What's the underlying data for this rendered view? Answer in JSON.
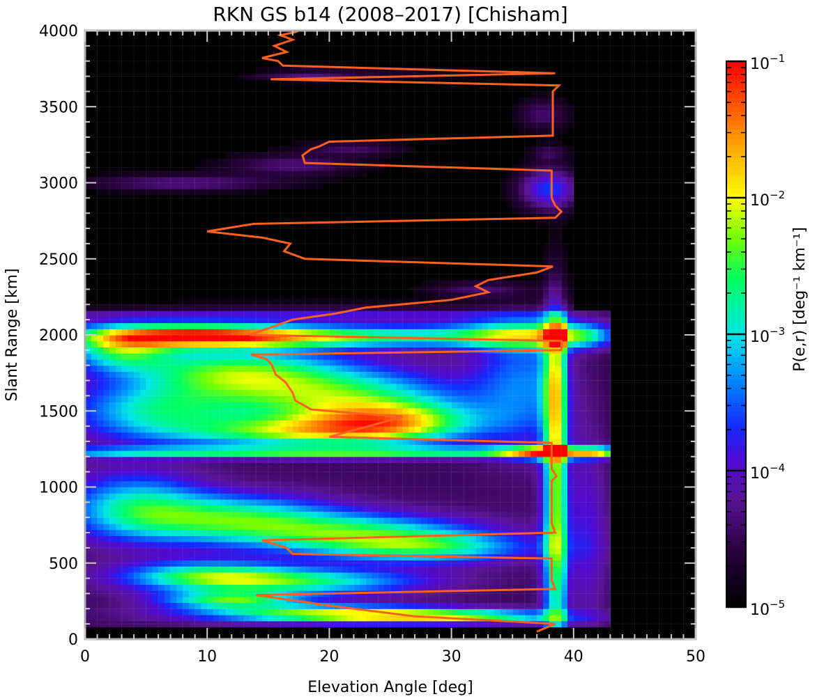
{
  "chart_data": {
    "type": "heatmap",
    "title": "RKN GS b14 (2008–2017) [Chisham]",
    "xlabel": "Elevation Angle [deg]",
    "ylabel": "Slant Range [km]",
    "colorbar_label": "P(e,r) [deg⁻¹ km⁻¹]",
    "xlim": [
      0,
      50
    ],
    "ylim": [
      0,
      4000
    ],
    "x_ticks": [
      "0",
      "10",
      "20",
      "30",
      "40",
      "50"
    ],
    "y_ticks": [
      "0",
      "500",
      "1000",
      "1500",
      "2000",
      "2500",
      "3000",
      "3500",
      "4000"
    ],
    "colorbar": {
      "scale": "log",
      "range": [
        1e-05,
        0.1
      ],
      "ticks": [
        {
          "value": 1e-05,
          "base": "10",
          "exp": "−5"
        },
        {
          "value": 0.0001,
          "base": "10",
          "exp": "−4"
        },
        {
          "value": 0.001,
          "base": "10",
          "exp": "−3"
        },
        {
          "value": 0.01,
          "base": "10",
          "exp": "−2"
        },
        {
          "value": 0.1,
          "base": "10",
          "exp": "−1"
        }
      ]
    },
    "grid": true,
    "background_color": "#000000",
    "line_color": "#ff6020",
    "peak_elevation_line": {
      "name": "",
      "points": [
        [
          37,
          50
        ],
        [
          38.5,
          100
        ],
        [
          27,
          150
        ],
        [
          20,
          220
        ],
        [
          14,
          290
        ],
        [
          38.5,
          330
        ],
        [
          38.2,
          390
        ],
        [
          38.2,
          530
        ],
        [
          17,
          560
        ],
        [
          16.5,
          600
        ],
        [
          14.5,
          650
        ],
        [
          38.5,
          700
        ],
        [
          38.2,
          760
        ],
        [
          38.2,
          1040
        ],
        [
          38.6,
          1070
        ],
        [
          38.2,
          1120
        ],
        [
          38.2,
          1290
        ],
        [
          20,
          1330
        ],
        [
          26,
          1460
        ],
        [
          18.5,
          1510
        ],
        [
          17.2,
          1570
        ],
        [
          17,
          1620
        ],
        [
          16.4,
          1690
        ],
        [
          15.6,
          1740
        ],
        [
          15.3,
          1800
        ],
        [
          14.9,
          1840
        ],
        [
          13.6,
          1870
        ],
        [
          39,
          1900
        ],
        [
          39,
          1960
        ],
        [
          13.5,
          2000
        ],
        [
          17,
          2100
        ],
        [
          20.5,
          2140
        ],
        [
          23,
          2180
        ],
        [
          30,
          2230
        ],
        [
          33,
          2280
        ],
        [
          32,
          2320
        ],
        [
          33,
          2360
        ],
        [
          37,
          2410
        ],
        [
          38.3,
          2450
        ],
        [
          18,
          2500
        ],
        [
          16.3,
          2550
        ],
        [
          16.8,
          2600
        ],
        [
          14.5,
          2640
        ],
        [
          10,
          2680
        ],
        [
          13.8,
          2730
        ],
        [
          38.5,
          2770
        ],
        [
          39,
          2810
        ],
        [
          38.5,
          2850
        ],
        [
          38.2,
          2900
        ],
        [
          38.2,
          3080
        ],
        [
          18,
          3130
        ],
        [
          17.8,
          3180
        ],
        [
          18.5,
          3220
        ],
        [
          19.2,
          3240
        ],
        [
          20,
          3270
        ],
        [
          38.3,
          3310
        ],
        [
          38.3,
          3600
        ],
        [
          38.8,
          3640
        ],
        [
          15.2,
          3680
        ],
        [
          38.5,
          3720
        ],
        [
          16.2,
          3770
        ],
        [
          15.8,
          3800
        ],
        [
          14.5,
          3820
        ],
        [
          16.5,
          3860
        ],
        [
          15.5,
          3900
        ],
        [
          17,
          3940
        ],
        [
          16,
          3970
        ],
        [
          17.2,
          3990
        ],
        [
          17.5,
          4000
        ]
      ]
    },
    "density_blobs": [
      {
        "e": 8,
        "r": 2000,
        "se": 6,
        "sr": 55,
        "w": 3.5
      },
      {
        "e": 18,
        "r": 1990,
        "se": 10,
        "sr": 50,
        "w": 3.3
      },
      {
        "e": 36,
        "r": 2000,
        "se": 5,
        "sr": 60,
        "w": 2.6
      },
      {
        "e": 40.5,
        "r": 2000,
        "se": 1.8,
        "sr": 60,
        "w": 2.6
      },
      {
        "e": 3,
        "r": 1900,
        "se": 3,
        "sr": 90,
        "w": 2.6
      },
      {
        "e": 12,
        "r": 1770,
        "se": 6,
        "sr": 110,
        "w": 2.8
      },
      {
        "e": 20,
        "r": 1600,
        "se": 7,
        "sr": 130,
        "w": 3.0
      },
      {
        "e": 25,
        "r": 1440,
        "se": 5,
        "sr": 90,
        "w": 3.2
      },
      {
        "e": 18,
        "r": 1360,
        "se": 7,
        "sr": 70,
        "w": 3.0
      },
      {
        "e": 6,
        "r": 1500,
        "se": 5,
        "sr": 130,
        "w": 2.4
      },
      {
        "e": 21,
        "r": 1230,
        "se": 20,
        "sr": 25,
        "w": 3.0
      },
      {
        "e": 38,
        "r": 1230,
        "se": 2.5,
        "sr": 30,
        "w": 3.4
      },
      {
        "e": 42,
        "r": 1230,
        "se": 1.5,
        "sr": 25,
        "w": 2.8
      },
      {
        "e": 4,
        "r": 880,
        "se": 4,
        "sr": 160,
        "w": 2.2
      },
      {
        "e": 12,
        "r": 800,
        "se": 6,
        "sr": 110,
        "w": 2.7
      },
      {
        "e": 22,
        "r": 700,
        "se": 7,
        "sr": 90,
        "w": 2.6
      },
      {
        "e": 28,
        "r": 600,
        "se": 6,
        "sr": 70,
        "w": 2.4
      },
      {
        "e": 10,
        "r": 420,
        "se": 5,
        "sr": 70,
        "w": 2.6
      },
      {
        "e": 18,
        "r": 380,
        "se": 7,
        "sr": 60,
        "w": 2.6
      },
      {
        "e": 12,
        "r": 260,
        "se": 4,
        "sr": 40,
        "w": 2.9
      },
      {
        "e": 20,
        "r": 170,
        "se": 8,
        "sr": 40,
        "w": 3.3
      },
      {
        "e": 30,
        "r": 150,
        "se": 7,
        "sr": 28,
        "w": 3.0
      },
      {
        "e": 38.5,
        "r": 600,
        "se": 0.7,
        "sr": 550,
        "w": 2.8
      },
      {
        "e": 38.5,
        "r": 1650,
        "se": 0.7,
        "sr": 450,
        "w": 2.8
      },
      {
        "e": 36,
        "r": 1700,
        "se": 3,
        "sr": 300,
        "w": 1.6
      },
      {
        "e": 41,
        "r": 700,
        "se": 1.5,
        "sr": 500,
        "w": 1.5
      },
      {
        "e": 8,
        "r": 3000,
        "se": 6,
        "sr": 40,
        "w": 1.2
      },
      {
        "e": 17,
        "r": 3120,
        "se": 4,
        "sr": 50,
        "w": 1.1
      },
      {
        "e": 22,
        "r": 3230,
        "se": 3,
        "sr": 35,
        "w": 0.9
      },
      {
        "e": 38,
        "r": 2960,
        "se": 1.8,
        "sr": 100,
        "w": 2.2
      },
      {
        "e": 37.5,
        "r": 3450,
        "se": 1.5,
        "sr": 80,
        "w": 1.0
      },
      {
        "e": 38,
        "r": 3200,
        "se": 1,
        "sr": 40,
        "w": 0.8
      },
      {
        "e": 18,
        "r": 3700,
        "se": 3,
        "sr": 25,
        "w": 0.9
      },
      {
        "e": 25,
        "r": 3720,
        "se": 6,
        "sr": 20,
        "w": 0.7
      },
      {
        "e": 32,
        "r": 2300,
        "se": 3,
        "sr": 40,
        "w": 0.9
      },
      {
        "e": 20,
        "r": 2150,
        "se": 15,
        "sr": 45,
        "w": 0.9
      }
    ]
  }
}
